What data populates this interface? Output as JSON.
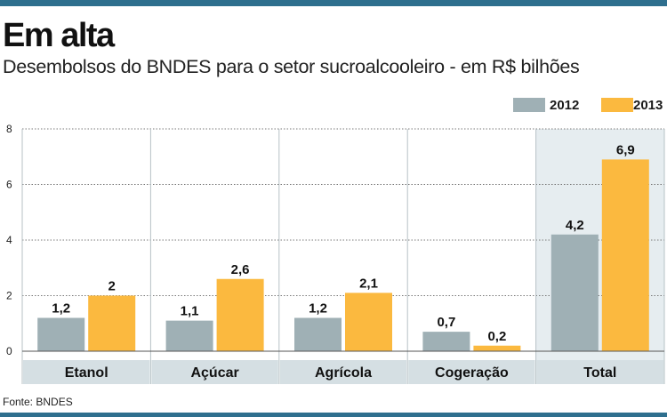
{
  "header": {
    "title": "Em alta",
    "subtitle": "Desembolsos do BNDES para o setor sucroalcooleiro -  em R$ bilhões"
  },
  "footer": {
    "source": "Fonte: BNDES"
  },
  "colors": {
    "series_2012": "#9fb0b5",
    "series_2013": "#fbb93f",
    "category_band": "#d5dfe3",
    "total_panel": "#e6edf0",
    "accent_bar": "#2e6f8e"
  },
  "chart_data": {
    "type": "bar",
    "title": "Em alta",
    "subtitle": "Desembolsos do BNDES para o setor sucroalcooleiro -  em R$ bilhões",
    "categories": [
      "Etanol",
      "Açúcar",
      "Agrícola",
      "Cogeração",
      "Total"
    ],
    "series": [
      {
        "name": "2012",
        "values": [
          1.2,
          1.1,
          1.2,
          0.7,
          4.2
        ],
        "labels": [
          "1,2",
          "1,1",
          "1,2",
          "0,7",
          "4,2"
        ]
      },
      {
        "name": "2013",
        "values": [
          2,
          2.6,
          2.1,
          0.2,
          6.9
        ],
        "labels": [
          "2",
          "2,6",
          "2,1",
          "0,2",
          "6,9"
        ]
      }
    ],
    "y_ticks": [
      0,
      2,
      4,
      6,
      8
    ],
    "y_tick_labels": [
      "0",
      "2",
      "4",
      "6",
      "8"
    ],
    "ylim": [
      0,
      8
    ],
    "grid": true,
    "legend_position": "top-right",
    "xlabel": "",
    "ylabel": ""
  }
}
